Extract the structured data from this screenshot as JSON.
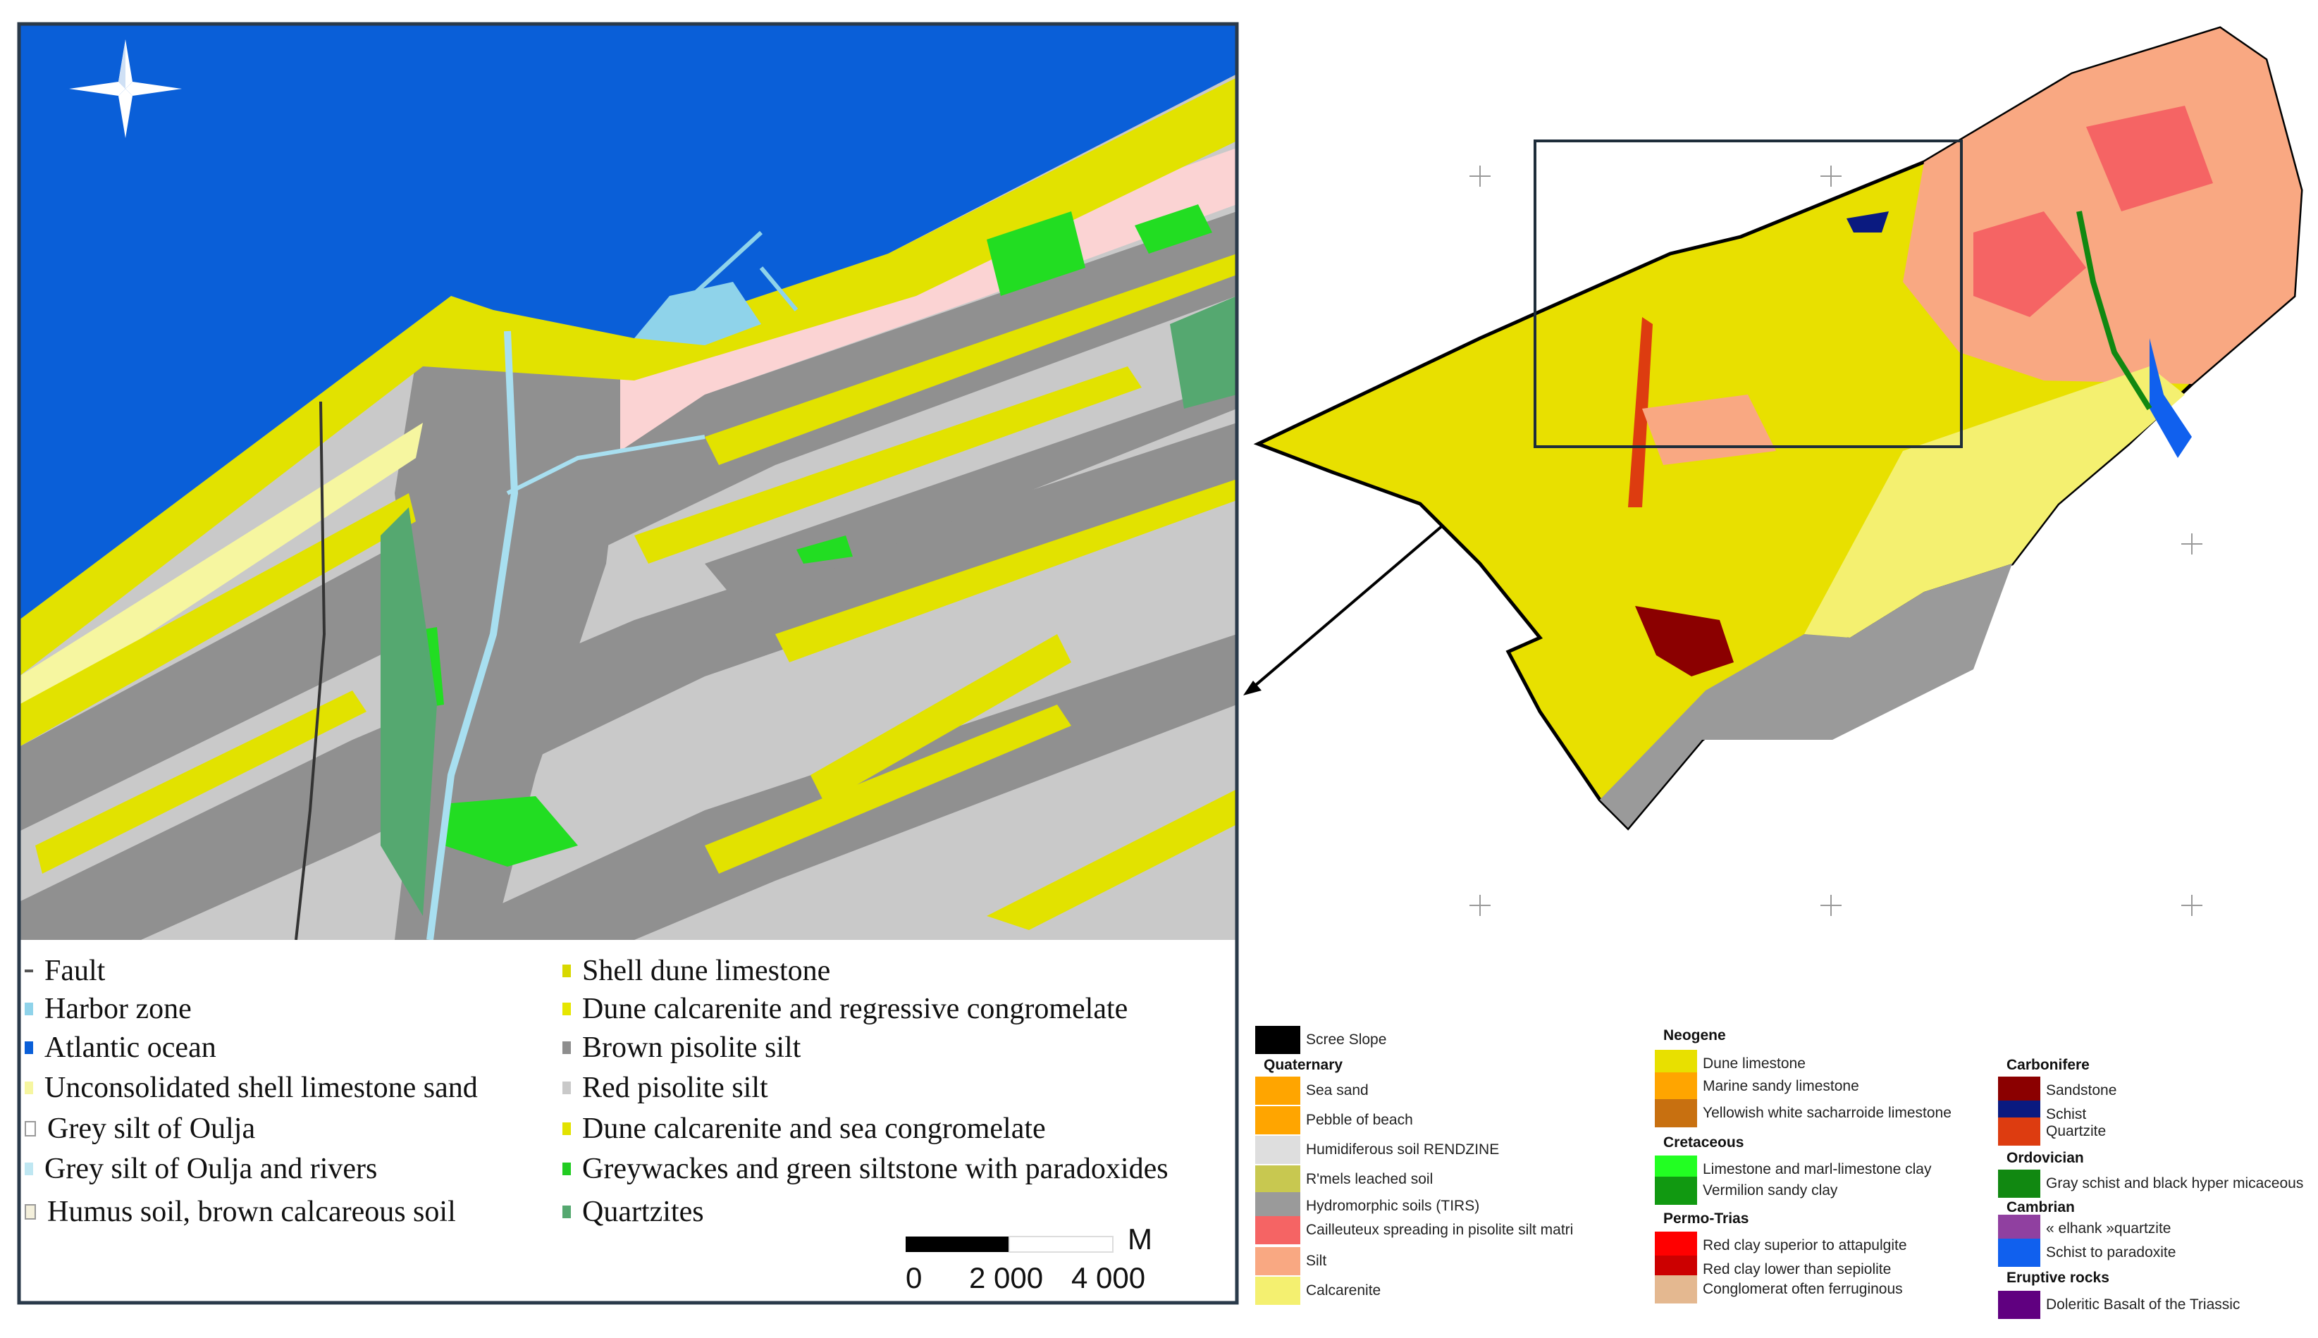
{
  "detail_map": {
    "legend": [
      {
        "label": "Fault",
        "color": "#555555"
      },
      {
        "label": "Harbor zone",
        "color": "#8fd3ea"
      },
      {
        "label": "Atlantic ocean",
        "color": "#0a5fd8"
      },
      {
        "label": "Unconsolidated shell limestone sand",
        "color": "#f6f6a0"
      },
      {
        "label": "Grey silt of Oulja",
        "color": "#ffffff"
      },
      {
        "label": "Grey silt of Oulja and rivers",
        "color": "#bfe7f2"
      },
      {
        "label": "Humus soil, brown calcareous soil",
        "color": "#f4f0dc"
      },
      {
        "label": "Shell dune limestone",
        "color": "#d8d800"
      },
      {
        "label": "Dune calcarenite and regressive congromelate",
        "color": "#e6e600"
      },
      {
        "label": "Brown pisolite silt",
        "color": "#8e8e8e"
      },
      {
        "label": "Red pisolite silt",
        "color": "#c9c9c9"
      },
      {
        "label": "Dune calcarenite and sea congromelate",
        "color": "#e2e200"
      },
      {
        "label": "Greywackes and green siltstone with paradoxides",
        "color": "#22cc22"
      },
      {
        "label": "Quartzites",
        "color": "#55a870"
      }
    ],
    "scale": {
      "labels": [
        "0",
        "2 000",
        "4 000"
      ],
      "unit": "M"
    },
    "north_arrow_icon": "compass-rose"
  },
  "overview_map": {
    "legend_columns": [
      [
        {
          "label": "Scree Slope",
          "color": "#000000"
        },
        {
          "heading": "Quaternary"
        },
        {
          "label": "Sea sand",
          "color": "#ffa500"
        },
        {
          "label": "Pebble of beach",
          "color": "#ffa500"
        },
        {
          "label": "Humidiferous soil RENDZINE",
          "color": "#dedede"
        },
        {
          "label": "R'mels leached soil",
          "color": "#c8c850"
        },
        {
          "label": "Hydromorphic soils (TIRS)",
          "color": "#9a9a9a"
        },
        {
          "label": "Cailleuteux spreading in pisolite silt matri",
          "color": "#f56464"
        },
        {
          "label": "Silt",
          "color": "#f9a882"
        },
        {
          "label": "Calcarenite",
          "color": "#f4f070"
        }
      ],
      [
        {
          "heading": "Neogene"
        },
        {
          "label": "Dune limestone",
          "color": "#e8e000"
        },
        {
          "label": "Marine sandy limestone",
          "color": "#ffa500"
        },
        {
          "label": "Yellowish white sacharroide limestone",
          "color": "#c87010"
        },
        {
          "heading": "Cretaceous"
        },
        {
          "label": "Limestone and marl-limestone clay",
          "color": "#22ff22"
        },
        {
          "label": "Vermilion sandy clay",
          "color": "#119911"
        },
        {
          "heading": "Permo-Trias"
        },
        {
          "label": "Red clay superior to attapulgite",
          "color": "#ff0000"
        },
        {
          "label": "Red clay lower than sepiolite",
          "color": "#cc0000"
        },
        {
          "label": "Conglomerat often ferruginous",
          "color": "#e4b890"
        }
      ],
      [
        {
          "heading": "Carbonifere"
        },
        {
          "label": "Sandstone",
          "color": "#8b0000"
        },
        {
          "label": "Schist",
          "color": "#0a1a80"
        },
        {
          "label": "Quartzite",
          "color": "#dd3c10"
        },
        {
          "heading": "Ordovician"
        },
        {
          "label": "Gray schist and black hyper micaceous",
          "color": "#118811"
        },
        {
          "heading": "Cambrian"
        },
        {
          "label": "« elhank »quartzite",
          "color": "#9040a0"
        },
        {
          "label": "Schist to paradoxite",
          "color": "#1060ee"
        },
        {
          "heading": "Eruptive rocks"
        },
        {
          "label": "Doleritic Basalt of the Triassic",
          "color": "#600080"
        }
      ]
    ]
  }
}
